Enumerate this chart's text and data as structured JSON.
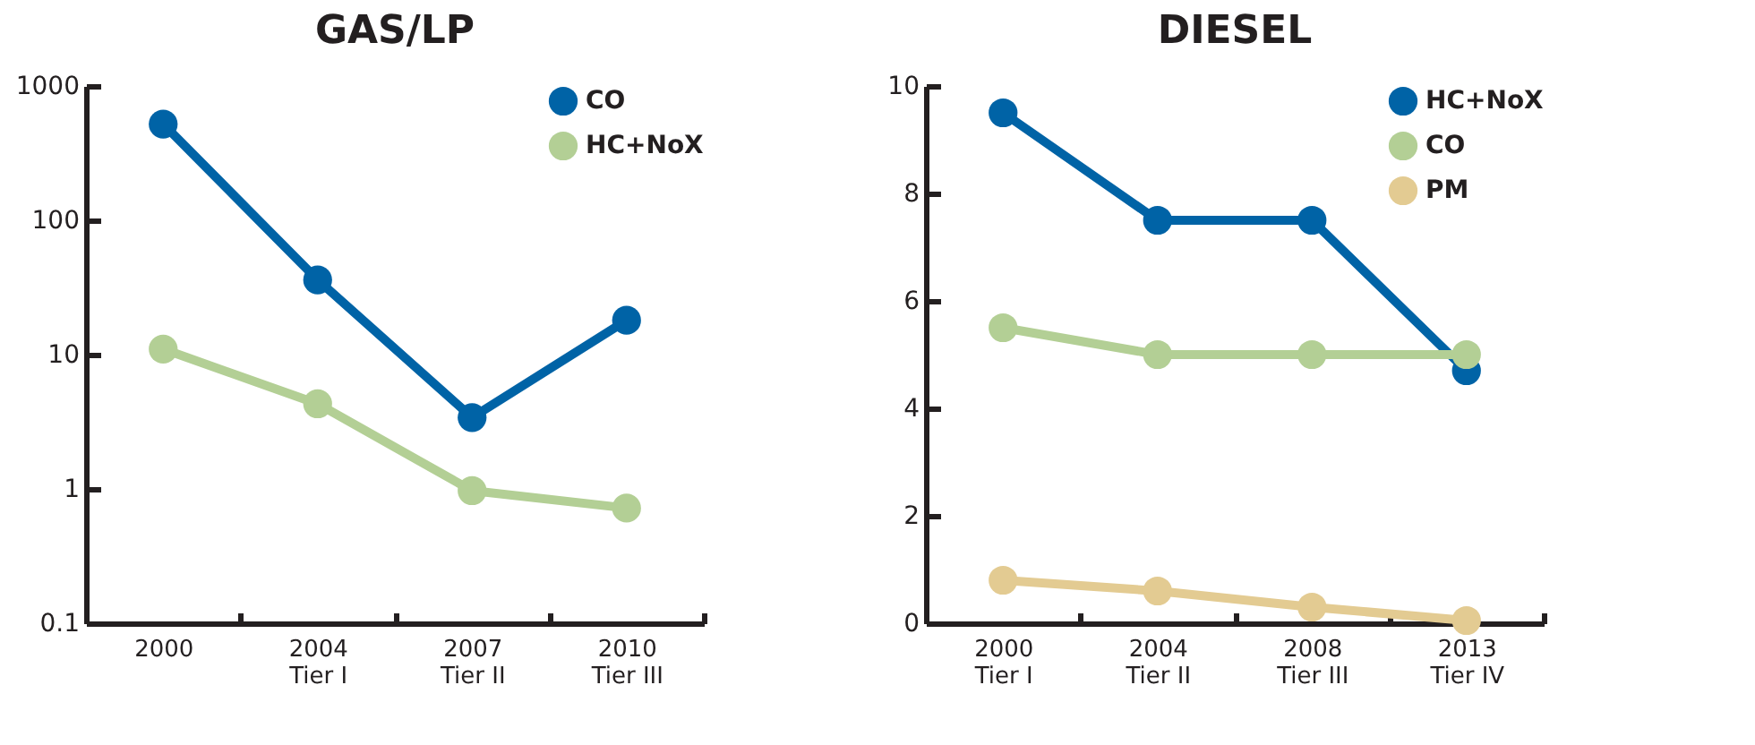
{
  "chart_data": [
    {
      "type": "line",
      "title": "GAS/LP",
      "categories": [
        "2000",
        "2004\nTier I",
        "2007\nTier II",
        "2010\nTier III"
      ],
      "series": [
        {
          "name": "CO",
          "color": "#0063a6",
          "values": [
            520,
            36,
            3.4,
            18
          ]
        },
        {
          "name": "HC+NoX",
          "color": "#b3cf95",
          "values": [
            11,
            4.3,
            0.97,
            0.72
          ]
        }
      ],
      "log": "y",
      "ylim": [
        0.1,
        1000
      ],
      "yticks": [
        0.1,
        1,
        10,
        100,
        1000
      ],
      "grid": false,
      "legend": "top right",
      "marker": "circle",
      "line_style": "solid"
    },
    {
      "type": "line",
      "title": "DIESEL",
      "categories": [
        "2000\nTier I",
        "2004\nTier II",
        "2008\nTier III",
        "2013\nTier IV"
      ],
      "series": [
        {
          "name": "HC+NoX",
          "color": "#0063a6",
          "values": [
            9.5,
            7.5,
            7.5,
            4.7
          ]
        },
        {
          "name": "CO",
          "color": "#b3cf95",
          "values": [
            5.5,
            5,
            5,
            5
          ]
        },
        {
          "name": "PM",
          "color": "#e3cb92",
          "values": [
            0.8,
            0.6,
            0.3,
            0.05
          ]
        }
      ],
      "ylim": [
        0,
        10
      ],
      "yticks": [
        0,
        2,
        4,
        6,
        8,
        10
      ],
      "grid": false,
      "legend": "top right",
      "marker": "circle",
      "line_style": "solid"
    }
  ]
}
